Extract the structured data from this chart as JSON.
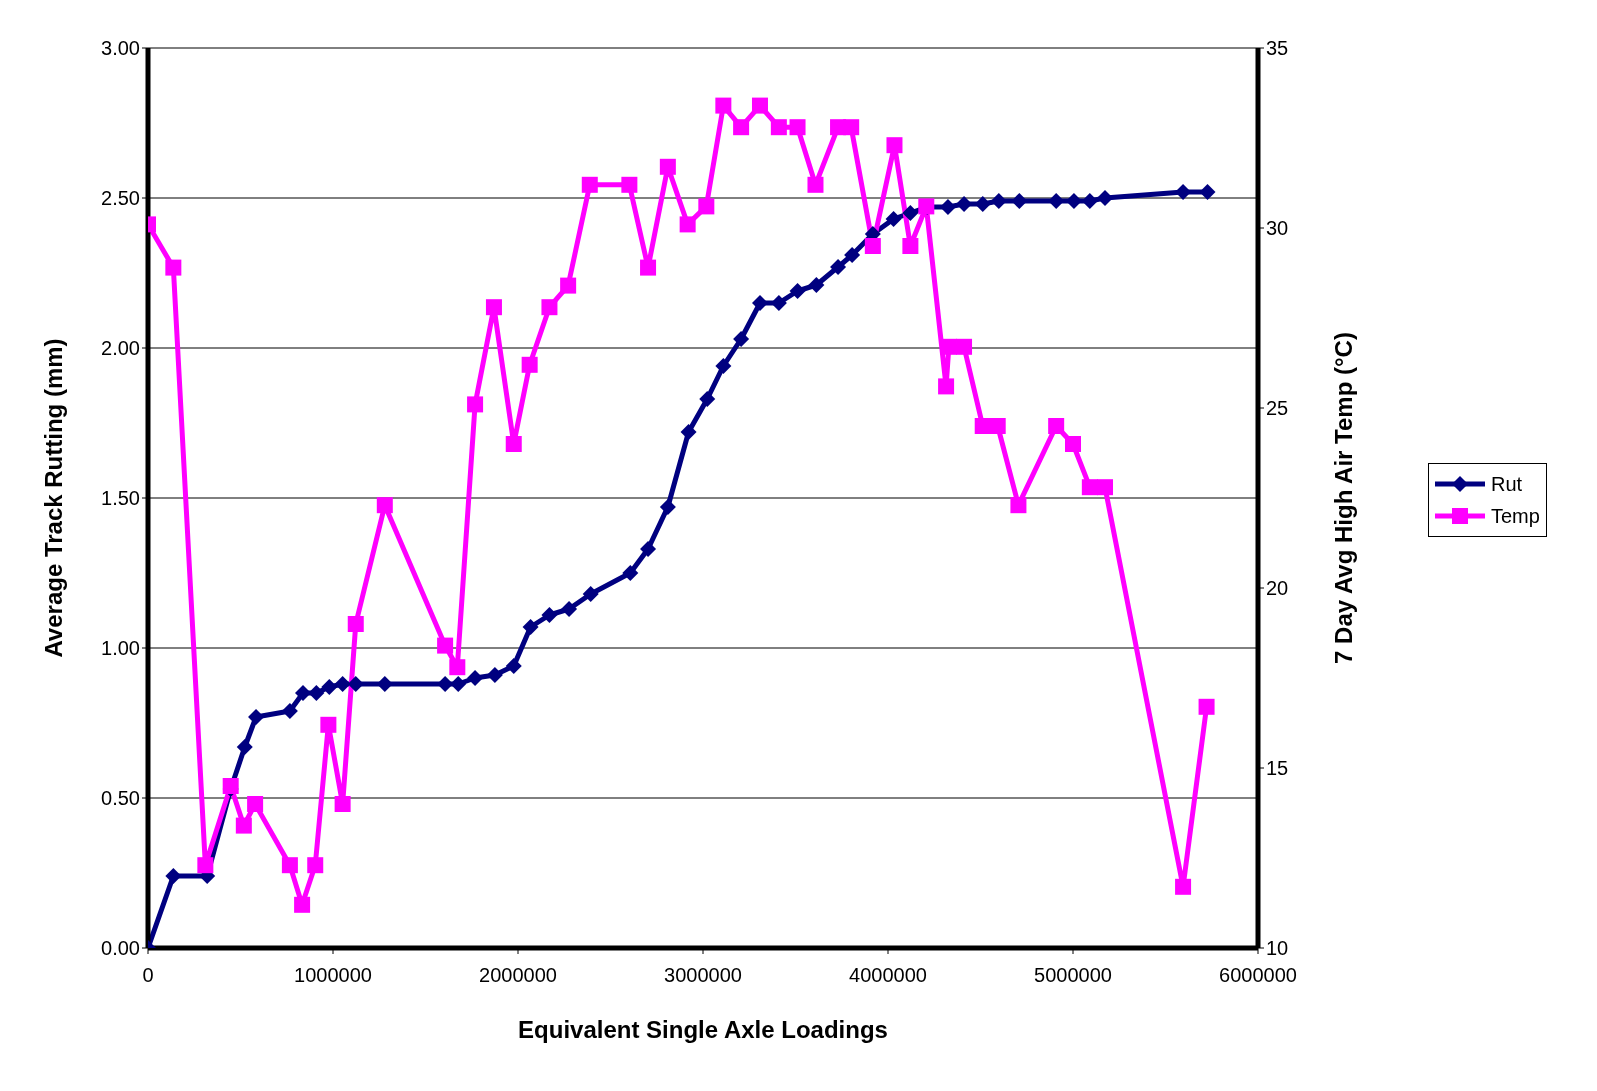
{
  "chart_data": {
    "type": "line",
    "xlabel": "Equivalent Single Axle Loadings",
    "ylabel": "Average Track Rutting (mm)",
    "y2label": "7 Day Avg High Air Temp (°C)",
    "xlim": [
      0,
      6000000
    ],
    "xticks": [
      0,
      1000000,
      2000000,
      3000000,
      4000000,
      5000000,
      6000000
    ],
    "ylim": [
      0,
      3
    ],
    "yticks": [
      {
        "value": 0,
        "label": "0.00"
      },
      {
        "value": 0.5,
        "label": "0.50"
      },
      {
        "value": 1,
        "label": "1.00"
      },
      {
        "value": 1.5,
        "label": "1.50"
      },
      {
        "value": 2,
        "label": "2.00"
      },
      {
        "value": 2.5,
        "label": "2.50"
      },
      {
        "value": 3,
        "label": "3.00"
      }
    ],
    "y2lim": [
      10,
      35
    ],
    "y2ticks": [
      10,
      15,
      20,
      25,
      30,
      35
    ],
    "grid": "y",
    "legend": "right",
    "series": [
      {
        "name": "Rut",
        "color": "#000080",
        "marker": "diamond",
        "x": [
          0,
          137000,
          320000,
          447000,
          523000,
          584000,
          767000,
          838000,
          910000,
          980000,
          1052000,
          1123000,
          1280000,
          1606000,
          1677000,
          1768000,
          1875000,
          1977000,
          2068000,
          2170000,
          2276000,
          2393000,
          2607000,
          2703000,
          2810000,
          2922000,
          3023000,
          3110000,
          3206000,
          3308000,
          3410000,
          3511000,
          3613000,
          3730000,
          3806000,
          3918000,
          4030000,
          4121000,
          4212000,
          4324000,
          4411000,
          4512000,
          4599000,
          4710000,
          4909000,
          5005000,
          5091000,
          5173000,
          5595000,
          5727000
        ],
        "values": [
          0,
          0.24,
          0.24,
          0.53,
          0.67,
          0.77,
          0.79,
          0.85,
          0.85,
          0.87,
          0.88,
          0.88,
          0.88,
          0.88,
          0.88,
          0.9,
          0.91,
          0.94,
          1.07,
          1.11,
          1.13,
          1.18,
          1.25,
          1.33,
          1.47,
          1.72,
          1.83,
          1.94,
          2.03,
          2.15,
          2.15,
          2.19,
          2.21,
          2.27,
          2.31,
          2.38,
          2.43,
          2.45,
          2.47,
          2.47,
          2.48,
          2.48,
          2.49,
          2.49,
          2.49,
          2.49,
          2.49,
          2.5,
          2.52,
          2.52
        ]
      },
      {
        "name": "Temp",
        "color": "#ff00ff",
        "marker": "square",
        "axis": "y2",
        "x": [
          0,
          137000,
          310000,
          447000,
          518000,
          579000,
          767000,
          833000,
          904000,
          975000,
          1052000,
          1123000,
          1280000,
          1606000,
          1672000,
          1768000,
          1870000,
          1977000,
          2063000,
          2170000,
          2271000,
          2388000,
          2602000,
          2703000,
          2810000,
          2917000,
          3018000,
          3110000,
          3206000,
          3308000,
          3410000,
          3511000,
          3608000,
          3730000,
          3801000,
          3918000,
          4035000,
          4121000,
          4207000,
          4314000,
          4329000,
          4411000,
          4512000,
          4593000,
          4705000,
          4909000,
          5000000,
          5091000,
          5173000,
          5595000,
          5722000
        ],
        "values": [
          30.1,
          28.9,
          12.3,
          14.5,
          13.4,
          14,
          12.3,
          11.2,
          12.3,
          16.2,
          14,
          19,
          22.3,
          18.4,
          17.8,
          25.1,
          27.8,
          24,
          26.2,
          27.8,
          28.4,
          31.2,
          31.2,
          28.9,
          31.7,
          30.1,
          30.6,
          33.4,
          32.8,
          33.4,
          32.8,
          32.8,
          31.2,
          32.8,
          32.8,
          29.5,
          32.3,
          29.5,
          30.6,
          25.6,
          26.7,
          26.7,
          24.5,
          24.5,
          22.3,
          24.5,
          24,
          22.8,
          22.8,
          11.7,
          16.7
        ]
      }
    ]
  }
}
